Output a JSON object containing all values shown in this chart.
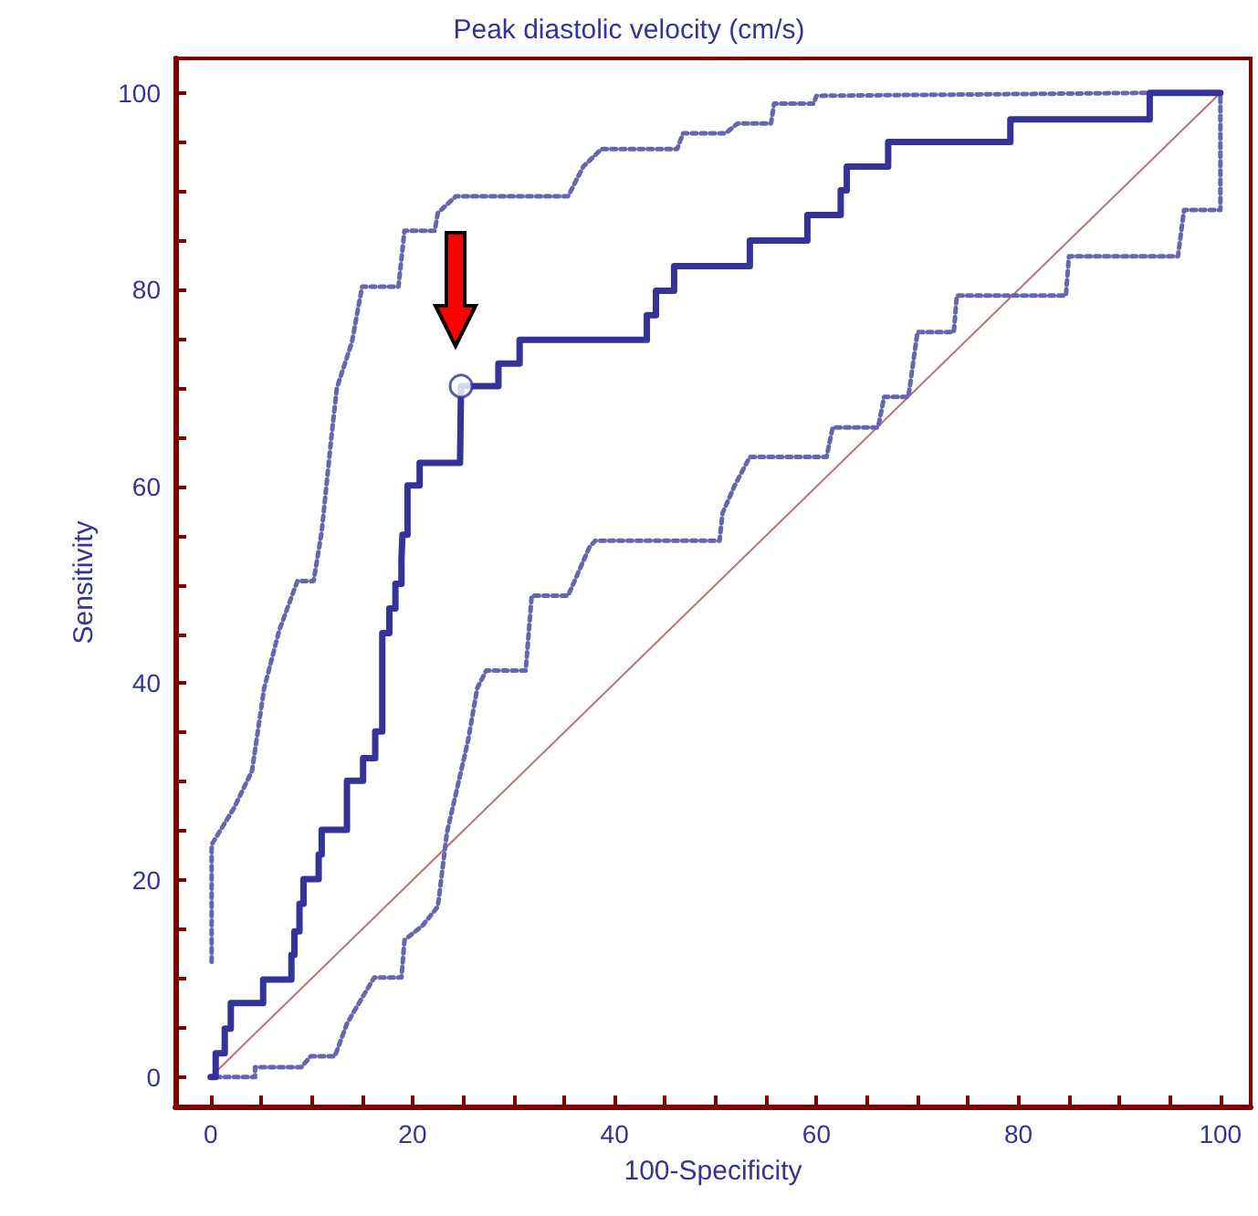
{
  "chart_data": {
    "type": "line",
    "title": "Peak diastolic velocity (cm/s)",
    "xlabel": "100-Specificity",
    "ylabel": "Sensitivity",
    "xlim": [
      -3.5,
      103
    ],
    "ylim": [
      -3,
      103.5
    ],
    "xticks": [
      0,
      {
        "value": 5,
        "label": null
      },
      {
        "value": 10,
        "label": null
      },
      {
        "value": 15,
        "label": null
      },
      20,
      {
        "value": 25,
        "label": null
      },
      {
        "value": 30,
        "label": null
      },
      {
        "value": 35,
        "label": null
      },
      40,
      {
        "value": 45,
        "label": null
      },
      {
        "value": 50,
        "label": null
      },
      {
        "value": 55,
        "label": null
      },
      60,
      {
        "value": 65,
        "label": null
      },
      {
        "value": 70,
        "label": null
      },
      {
        "value": 75,
        "label": null
      },
      80,
      {
        "value": 85,
        "label": null
      },
      {
        "value": 90,
        "label": null
      },
      {
        "value": 95,
        "label": null
      },
      100
    ],
    "yticks": [
      0,
      {
        "value": 5,
        "label": null
      },
      {
        "value": 10,
        "label": null
      },
      {
        "value": 15,
        "label": null
      },
      20,
      {
        "value": 25,
        "label": null
      },
      {
        "value": 30,
        "label": null
      },
      {
        "value": 35,
        "label": null
      },
      40,
      {
        "value": 45,
        "label": null
      },
      {
        "value": 50,
        "label": null
      },
      {
        "value": 55,
        "label": null
      },
      60,
      {
        "value": 65,
        "label": null
      },
      {
        "value": 70,
        "label": null
      },
      {
        "value": 75,
        "label": null
      },
      80,
      {
        "value": 85,
        "label": null
      },
      {
        "value": 90,
        "label": null
      },
      {
        "value": 95,
        "label": null
      },
      100
    ],
    "grid": false,
    "marker": "none",
    "series": [
      {
        "line_style": "solid",
        "color": "#c07070",
        "x": [
          0,
          100
        ],
        "values": [
          0,
          100
        ]
      },
      {
        "line_style": "dotted",
        "color": "#6666b0",
        "x": [
          0.1,
          0.1,
          2.3,
          4.1,
          5.3,
          6.8,
          8.6,
          10.2,
          11.0,
          12.0,
          12.5,
          14.0,
          15.0,
          18.6,
          19.2,
          22.2,
          22.5,
          24.3,
          35.4,
          36.9,
          38.7,
          46.2,
          46.8,
          51.0,
          52.2,
          55.5,
          55.8,
          59.7,
          60.0,
          93.0,
          100
        ],
        "values": [
          11.7,
          23.6,
          27.3,
          31.1,
          39.5,
          45.4,
          50.4,
          50.4,
          55.4,
          65.4,
          70.0,
          74.7,
          80.3,
          80.3,
          86.0,
          86.0,
          87.8,
          89.5,
          89.5,
          92.5,
          94.3,
          94.3,
          95.9,
          95.9,
          96.9,
          96.9,
          98.9,
          98.9,
          99.7,
          100,
          100
        ]
      },
      {
        "line_style": "dotted",
        "color": "#6666b0",
        "x": [
          0.5,
          4.4,
          4.4,
          9.0,
          9.9,
          12.3,
          13.5,
          14.4,
          16.2,
          18.9,
          19.2,
          21.0,
          22.5,
          23.4,
          25.5,
          26.4,
          27.3,
          31.2,
          31.8,
          35.4,
          37.5,
          38.1,
          50.4,
          50.7,
          51.9,
          53.4,
          61.0,
          61.6,
          66.1,
          66.7,
          69.1,
          70.0,
          73.6,
          73.9,
          84.7,
          85.0,
          95.8,
          96.4,
          100,
          100
        ],
        "values": [
          0,
          0,
          1.0,
          1.0,
          2.1,
          2.1,
          5.4,
          7.0,
          10.1,
          10.1,
          13.9,
          15.4,
          17.3,
          24.8,
          34.2,
          39.5,
          41.3,
          41.3,
          48.9,
          48.9,
          53.8,
          54.5,
          54.5,
          57.3,
          60.1,
          63.0,
          63.0,
          66.0,
          66.0,
          69.1,
          69.1,
          75.7,
          75.7,
          79.4,
          79.4,
          83.4,
          83.4,
          88.1,
          88.1,
          100
        ]
      },
      {
        "line_style": "solid",
        "color": "#333399",
        "x": [
          0,
          0.5,
          0.5,
          1.4,
          1.4,
          2.0,
          2.0,
          5.2,
          5.2,
          8.0,
          8.0,
          8.3,
          8.3,
          8.8,
          8.8,
          9.2,
          9.2,
          10.7,
          10.7,
          11.0,
          11.0,
          13.5,
          13.5,
          15.1,
          15.1,
          16.3,
          16.3,
          17.0,
          17.0,
          17.7,
          17.7,
          18.3,
          18.3,
          18.9,
          18.9,
          19.0,
          19.0,
          19.5,
          19.5,
          20.7,
          20.7,
          24.7,
          24.8,
          28.5,
          28.5,
          30.6,
          30.6,
          43.2,
          43.2,
          44.1,
          44.1,
          45.9,
          45.9,
          53.4,
          53.4,
          59.1,
          59.1,
          62.4,
          62.4,
          63.0,
          63.0,
          67.1,
          67.1,
          79.2,
          79.2,
          93.0,
          93.0,
          100
        ],
        "values": [
          0,
          0,
          2.4,
          2.4,
          4.9,
          4.9,
          7.5,
          7.5,
          9.9,
          9.9,
          12.4,
          12.4,
          14.8,
          14.8,
          17.6,
          17.6,
          20.1,
          20.1,
          22.6,
          22.6,
          25.1,
          25.1,
          30.1,
          30.1,
          32.4,
          32.4,
          35.1,
          35.1,
          45.1,
          45.1,
          47.6,
          47.6,
          50.1,
          50.1,
          52.6,
          52.6,
          55.1,
          55.1,
          60.1,
          60.1,
          62.4,
          62.4,
          70.2,
          70.2,
          72.5,
          72.5,
          74.9,
          74.9,
          77.4,
          77.4,
          79.9,
          79.9,
          82.4,
          82.4,
          85.0,
          85.0,
          87.6,
          87.6,
          90.1,
          90.1,
          92.5,
          92.5,
          95.0,
          95.0,
          97.3,
          97.3,
          100,
          100
        ]
      },
      {
        "type": "scatter",
        "marker": "circle",
        "color": "#333399",
        "x": [
          24.8
        ],
        "values": [
          70.2
        ]
      }
    ]
  }
}
